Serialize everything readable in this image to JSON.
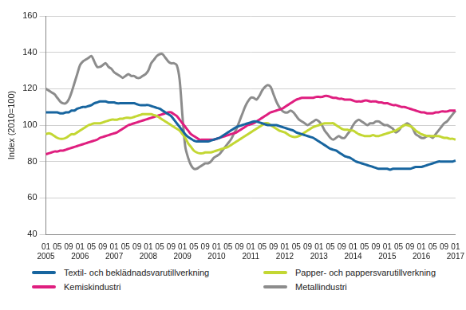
{
  "chart_data": {
    "type": "line",
    "y_label": "Index (2010=100)",
    "ylim": [
      40,
      160
    ],
    "yticks": [
      40,
      60,
      80,
      100,
      120,
      140,
      160
    ],
    "grid": true,
    "legend": "bottom",
    "tick_labels": true,
    "categories": [
      "01\n2005",
      null,
      null,
      null,
      "05",
      null,
      null,
      null,
      "09",
      null,
      null,
      null,
      "01\n2006",
      null,
      null,
      null,
      "05",
      null,
      null,
      null,
      "09",
      null,
      null,
      null,
      "01\n2007",
      null,
      null,
      null,
      "05",
      null,
      null,
      null,
      "09",
      null,
      null,
      null,
      "01\n2008",
      null,
      null,
      null,
      "05",
      null,
      null,
      null,
      "09",
      null,
      null,
      null,
      "01\n2009",
      null,
      null,
      null,
      "05",
      null,
      null,
      null,
      "09",
      null,
      null,
      null,
      "01\n2010",
      null,
      null,
      null,
      "05",
      null,
      null,
      null,
      "09",
      null,
      null,
      null,
      "01\n2011",
      null,
      null,
      null,
      "05",
      null,
      null,
      null,
      "09",
      null,
      null,
      null,
      "01\n2012",
      null,
      null,
      null,
      "05",
      null,
      null,
      null,
      "09",
      null,
      null,
      null,
      "01\n2013",
      null,
      null,
      null,
      "05",
      null,
      null,
      null,
      "09",
      null,
      null,
      null,
      "01\n2014",
      null,
      null,
      null,
      "05",
      null,
      null,
      null,
      "09",
      null,
      null,
      null,
      "01\n2015",
      null,
      null,
      null,
      "05",
      null,
      null,
      null,
      "09",
      null,
      null,
      null,
      "01\n2016",
      null,
      null,
      null,
      "05",
      null,
      null,
      null,
      "09",
      null,
      null,
      null,
      "01\n2017"
    ],
    "series": [
      {
        "name": "Textil- och beklädnadsvarutillverkning",
        "color": "#17659f",
        "values": [
          107,
          107,
          107,
          107,
          107,
          106.5,
          106.5,
          107,
          107,
          108,
          108,
          109,
          109.5,
          110,
          110,
          110.5,
          111,
          112,
          112.5,
          113,
          113,
          113,
          112.5,
          112.5,
          112.5,
          112,
          112,
          112,
          112,
          112,
          112,
          112,
          111.5,
          111,
          111,
          111,
          111,
          110.5,
          110,
          109.5,
          109,
          108,
          107,
          106,
          105,
          103,
          101,
          99,
          97,
          95,
          93.5,
          92.5,
          91.5,
          91,
          91,
          91,
          91,
          91,
          91.5,
          92,
          92.5,
          93,
          94,
          95,
          96,
          97,
          98,
          99,
          99.5,
          100,
          100.5,
          101,
          101.5,
          102,
          102,
          101.5,
          101,
          100.5,
          100,
          100,
          100,
          100,
          99.5,
          99,
          98.5,
          98,
          97.5,
          97,
          96,
          95.5,
          95,
          94.5,
          94,
          93.5,
          93,
          92,
          91,
          90,
          89,
          88,
          87,
          86.5,
          86,
          85,
          84,
          83,
          82.5,
          82,
          81,
          80,
          79.5,
          79,
          78.5,
          78,
          77.5,
          77,
          76.5,
          76,
          76,
          76,
          76,
          75.5,
          76,
          76,
          76,
          76,
          76,
          76,
          76,
          76.5,
          77,
          77,
          77,
          77.5,
          78,
          78.5,
          79,
          79.5,
          80,
          80,
          80,
          80,
          80,
          80,
          80.5
        ]
      },
      {
        "name": "Papper- och pappersvarutillverkning",
        "color": "#c3d733",
        "values": [
          95,
          95.5,
          95,
          94,
          93,
          92.5,
          92.5,
          93,
          94,
          95,
          95,
          96,
          97,
          98,
          99,
          100,
          100.5,
          101,
          101,
          101,
          101.5,
          102,
          102.5,
          103,
          103,
          103,
          103.5,
          103.5,
          104,
          104,
          104,
          104.5,
          105,
          105.5,
          106,
          106,
          106,
          106,
          105.5,
          105,
          104,
          103,
          102,
          101,
          100,
          99,
          98,
          97,
          95,
          93,
          90,
          88,
          86,
          85,
          84.5,
          84.5,
          85,
          85,
          85,
          85.5,
          86,
          86.5,
          87,
          87.5,
          88,
          89,
          90,
          91,
          92,
          93,
          94,
          95,
          96,
          97,
          98,
          99,
          100,
          101,
          101,
          100,
          99,
          98,
          97,
          96.5,
          96,
          95,
          94,
          93.5,
          93.5,
          94,
          95,
          96,
          97,
          98,
          99,
          99.5,
          100,
          100.5,
          101,
          101,
          101,
          101,
          100,
          99,
          98,
          97.5,
          97.5,
          97,
          97,
          96,
          95,
          94.5,
          94,
          94,
          94,
          94.5,
          94,
          94,
          94.5,
          95,
          95.5,
          96,
          96.5,
          97,
          98,
          99,
          100,
          100,
          99.5,
          98.5,
          97,
          96,
          95,
          94.5,
          94,
          94,
          94,
          94,
          94,
          93.5,
          93,
          93,
          92.5,
          92.5,
          92
        ]
      },
      {
        "name": "Kemiskindustri",
        "color": "#df1e7f",
        "values": [
          84,
          84.5,
          85,
          85.5,
          85.5,
          86,
          86,
          86.5,
          87,
          87.5,
          88,
          88.5,
          89,
          89.5,
          90,
          90.5,
          91,
          91.5,
          92,
          93,
          93.5,
          94,
          94.5,
          95,
          95.5,
          96,
          97,
          98,
          99,
          100,
          100.5,
          101,
          101.5,
          102,
          102.5,
          103,
          103.5,
          104,
          104.5,
          105,
          105.5,
          106,
          106.5,
          107,
          107,
          106,
          105,
          103,
          101,
          99,
          97,
          95,
          94,
          93,
          92,
          92,
          92,
          92,
          92,
          92,
          92.5,
          93,
          93.5,
          94,
          94.5,
          95,
          95.5,
          96,
          97,
          98,
          99,
          100,
          100.5,
          101,
          102,
          103,
          104,
          105,
          106,
          107,
          107.5,
          108,
          108.5,
          109,
          110,
          111,
          112,
          113,
          114,
          114.5,
          115,
          115,
          115,
          115,
          115,
          115.5,
          115.5,
          115.5,
          116,
          116,
          115.5,
          115,
          115,
          114.5,
          114.5,
          114,
          114,
          114,
          113.5,
          113,
          113,
          113,
          113.5,
          113.5,
          113,
          113,
          113,
          112.5,
          112.5,
          112,
          112,
          111.5,
          111,
          111,
          110.5,
          110,
          110,
          109.5,
          109,
          108.5,
          108,
          107.5,
          107,
          107,
          106.5,
          106.5,
          106.5,
          107,
          107,
          107.5,
          107.5,
          107.5,
          108,
          108,
          108
        ]
      },
      {
        "name": "Metallindustri",
        "color": "#8c8c8c",
        "values": [
          120,
          119,
          118,
          117,
          115,
          113,
          112,
          112,
          114,
          118,
          123,
          128,
          133,
          135,
          136,
          137,
          138,
          135,
          132,
          132,
          133,
          134,
          132,
          131,
          129,
          128,
          127,
          126,
          127,
          128,
          127,
          127,
          126,
          126,
          127,
          128,
          130,
          134,
          136,
          138,
          139,
          139,
          137,
          135,
          134,
          134,
          133,
          125,
          105,
          88,
          82,
          78,
          76,
          76,
          77,
          78,
          79,
          79,
          80,
          82,
          83,
          84,
          86,
          88,
          90,
          92,
          95,
          98,
          102,
          106,
          110,
          113,
          115,
          115,
          114,
          116,
          119,
          121,
          122,
          121,
          117,
          113,
          110,
          108,
          107,
          107,
          108,
          107,
          105,
          103,
          102,
          101,
          100,
          101,
          102,
          103,
          102,
          100,
          97,
          95,
          93,
          92,
          93,
          94,
          93,
          93,
          95,
          97,
          100,
          102,
          103,
          102,
          101,
          100,
          101,
          101,
          102,
          102,
          101,
          100,
          100,
          99,
          98,
          96,
          97,
          99,
          100,
          101,
          100,
          98,
          95,
          94,
          93,
          93,
          94,
          94,
          93,
          95,
          97,
          99,
          101,
          102,
          104,
          106,
          108
        ]
      }
    ]
  }
}
